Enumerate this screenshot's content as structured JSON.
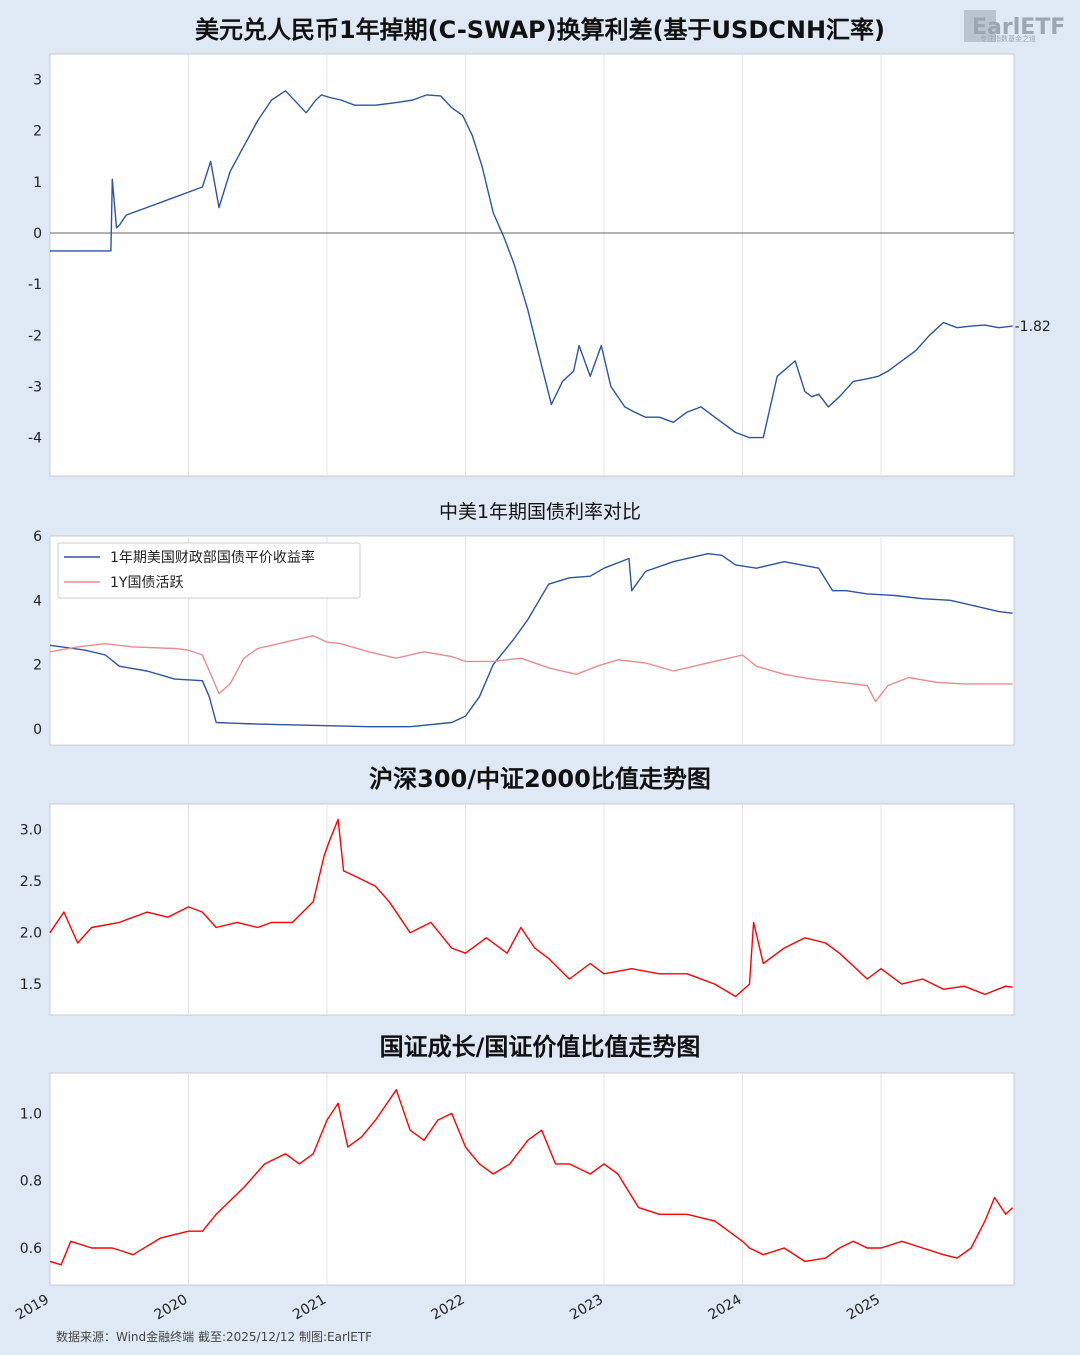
{
  "source_note": "数据来源：Wind金融终端 截至:2025/12/12 制图:EarlETF",
  "logo": {
    "text": "EarlETF",
    "subtitle": "专注指数基金之道"
  },
  "x_axis": {
    "tick_labels": [
      "2019",
      "2020",
      "2021",
      "2022",
      "2023",
      "2024",
      "2025"
    ]
  },
  "chart_data": [
    {
      "type": "line",
      "title": "美元兑人民币1年掉期(C-SWAP)换算利差(基于USDCNH汇率)",
      "ylim": [
        -4.75,
        3.5
      ],
      "yticks": [
        3,
        2,
        1,
        0,
        -1,
        -2,
        -3,
        -4
      ],
      "zero_line": true,
      "end_label": "-1.82",
      "series": [
        {
          "name": "",
          "color": "#2c54a0",
          "x": [
            2019.0,
            2019.44,
            2019.45,
            2019.48,
            2019.5,
            2019.55,
            2019.7,
            2019.85,
            2020.0,
            2020.1,
            2020.16,
            2020.22,
            2020.3,
            2020.38,
            2020.5,
            2020.6,
            2020.7,
            2020.85,
            2020.92,
            2020.96,
            2021.02,
            2021.1,
            2021.2,
            2021.35,
            2021.5,
            2021.62,
            2021.72,
            2021.82,
            2021.9,
            2021.98,
            2022.05,
            2022.12,
            2022.2,
            2022.28,
            2022.35,
            2022.45,
            2022.55,
            2022.62,
            2022.7,
            2022.78,
            2022.82,
            2022.9,
            2022.98,
            2023.05,
            2023.15,
            2023.22,
            2023.3,
            2023.4,
            2023.5,
            2023.6,
            2023.7,
            2023.85,
            2023.95,
            2024.05,
            2024.15,
            2024.25,
            2024.38,
            2024.45,
            2024.5,
            2024.55,
            2024.62,
            2024.7,
            2024.8,
            2024.9,
            2024.98,
            2025.05,
            2025.15,
            2025.25,
            2025.35,
            2025.45,
            2025.55,
            2025.65,
            2025.75,
            2025.85,
            2025.95
          ],
          "y": [
            -0.35,
            -0.35,
            1.05,
            0.1,
            0.15,
            0.35,
            0.5,
            0.65,
            0.8,
            0.9,
            1.4,
            0.5,
            1.2,
            1.6,
            2.2,
            2.6,
            2.78,
            2.35,
            2.6,
            2.7,
            2.65,
            2.6,
            2.5,
            2.5,
            2.55,
            2.6,
            2.7,
            2.68,
            2.45,
            2.3,
            1.9,
            1.3,
            0.4,
            -0.1,
            -0.6,
            -1.5,
            -2.6,
            -3.35,
            -2.9,
            -2.7,
            -2.2,
            -2.8,
            -2.2,
            -3.0,
            -3.4,
            -3.5,
            -3.6,
            -3.6,
            -3.7,
            -3.5,
            -3.4,
            -3.7,
            -3.9,
            -4.0,
            -4.0,
            -2.8,
            -2.5,
            -3.1,
            -3.2,
            -3.15,
            -3.4,
            -3.2,
            -2.9,
            -2.85,
            -2.8,
            -2.7,
            -2.5,
            -2.3,
            -2.0,
            -1.75,
            -1.85,
            -1.82,
            -1.8,
            -1.85,
            -1.82
          ]
        }
      ]
    },
    {
      "type": "line",
      "title": "中美1年期国债利率对比",
      "ylim": [
        -0.5,
        6.0
      ],
      "yticks": [
        6,
        4,
        2,
        0
      ],
      "legend_position": "top-left",
      "series": [
        {
          "name": "1年期美国财政部国债平价收益率",
          "color": "#2c54a0",
          "x": [
            2019.0,
            2019.25,
            2019.4,
            2019.5,
            2019.7,
            2019.9,
            2020.1,
            2020.15,
            2020.2,
            2020.3,
            2020.5,
            2020.8,
            2021.0,
            2021.3,
            2021.6,
            2021.9,
            2022.0,
            2022.1,
            2022.2,
            2022.35,
            2022.45,
            2022.6,
            2022.75,
            2022.9,
            2023.0,
            2023.18,
            2023.2,
            2023.3,
            2023.5,
            2023.75,
            2023.85,
            2023.95,
            2024.1,
            2024.3,
            2024.55,
            2024.65,
            2024.75,
            2024.9,
            2025.1,
            2025.3,
            2025.5,
            2025.7,
            2025.85,
            2025.95
          ],
          "y": [
            2.6,
            2.45,
            2.3,
            1.95,
            1.8,
            1.55,
            1.5,
            1.0,
            0.2,
            0.18,
            0.15,
            0.12,
            0.1,
            0.07,
            0.07,
            0.2,
            0.4,
            1.0,
            2.0,
            2.8,
            3.4,
            4.5,
            4.7,
            4.75,
            5.0,
            5.3,
            4.3,
            4.9,
            5.2,
            5.45,
            5.4,
            5.1,
            5.0,
            5.2,
            5.0,
            4.3,
            4.3,
            4.2,
            4.15,
            4.05,
            4.0,
            3.8,
            3.65,
            3.6
          ]
        },
        {
          "name": "1Y国债活跃",
          "color": "#e88c8c",
          "x": [
            2019.0,
            2019.2,
            2019.4,
            2019.6,
            2019.9,
            2020.0,
            2020.1,
            2020.22,
            2020.3,
            2020.4,
            2020.5,
            2020.7,
            2020.9,
            2021.0,
            2021.1,
            2021.3,
            2021.5,
            2021.7,
            2021.9,
            2022.0,
            2022.2,
            2022.4,
            2022.6,
            2022.8,
            2022.95,
            2023.1,
            2023.3,
            2023.5,
            2023.7,
            2023.9,
            2024.0,
            2024.1,
            2024.3,
            2024.5,
            2024.7,
            2024.9,
            2024.96,
            2025.05,
            2025.2,
            2025.4,
            2025.6,
            2025.8,
            2025.95
          ],
          "y": [
            2.4,
            2.55,
            2.65,
            2.55,
            2.5,
            2.45,
            2.3,
            1.1,
            1.4,
            2.2,
            2.5,
            2.7,
            2.9,
            2.7,
            2.65,
            2.4,
            2.2,
            2.4,
            2.25,
            2.1,
            2.1,
            2.2,
            1.9,
            1.7,
            1.95,
            2.15,
            2.05,
            1.8,
            2.0,
            2.2,
            2.3,
            1.95,
            1.7,
            1.55,
            1.45,
            1.35,
            0.85,
            1.35,
            1.6,
            1.45,
            1.4,
            1.4,
            1.4
          ]
        }
      ]
    },
    {
      "type": "line",
      "title": "沪深300/中证2000比值走势图",
      "ylim": [
        1.2,
        3.25
      ],
      "yticks": [
        3.0,
        2.5,
        2.0,
        1.5
      ],
      "series": [
        {
          "name": "",
          "color": "#ff0000",
          "x": [
            2019.0,
            2019.1,
            2019.2,
            2019.3,
            2019.5,
            2019.7,
            2019.85,
            2020.0,
            2020.1,
            2020.2,
            2020.35,
            2020.5,
            2020.6,
            2020.75,
            2020.9,
            2020.98,
            2021.02,
            2021.08,
            2021.12,
            2021.2,
            2021.35,
            2021.45,
            2021.6,
            2021.75,
            2021.9,
            2022.0,
            2022.15,
            2022.3,
            2022.4,
            2022.5,
            2022.6,
            2022.75,
            2022.9,
            2023.0,
            2023.2,
            2023.4,
            2023.6,
            2023.8,
            2023.95,
            2024.05,
            2024.08,
            2024.15,
            2024.3,
            2024.45,
            2024.6,
            2024.7,
            2024.78,
            2024.9,
            2025.0,
            2025.15,
            2025.3,
            2025.45,
            2025.6,
            2025.75,
            2025.9,
            2025.95
          ],
          "y": [
            2.0,
            2.2,
            1.9,
            2.05,
            2.1,
            2.2,
            2.15,
            2.25,
            2.2,
            2.05,
            2.1,
            2.05,
            2.1,
            2.1,
            2.3,
            2.75,
            2.9,
            3.1,
            2.6,
            2.55,
            2.45,
            2.3,
            2.0,
            2.1,
            1.85,
            1.8,
            1.95,
            1.8,
            2.05,
            1.85,
            1.75,
            1.55,
            1.7,
            1.6,
            1.65,
            1.6,
            1.6,
            1.5,
            1.38,
            1.5,
            2.1,
            1.7,
            1.85,
            1.95,
            1.9,
            1.8,
            1.7,
            1.55,
            1.65,
            1.5,
            1.55,
            1.45,
            1.48,
            1.4,
            1.48,
            1.47
          ]
        }
      ]
    },
    {
      "type": "line",
      "title": "国证成长/国证价值比值走势图",
      "ylim": [
        0.49,
        1.12
      ],
      "yticks": [
        1.0,
        0.8,
        0.6
      ],
      "series": [
        {
          "name": "",
          "color": "#ff0000",
          "x": [
            2019.0,
            2019.08,
            2019.15,
            2019.3,
            2019.45,
            2019.6,
            2019.8,
            2020.0,
            2020.1,
            2020.2,
            2020.4,
            2020.55,
            2020.7,
            2020.8,
            2020.9,
            2021.0,
            2021.08,
            2021.15,
            2021.25,
            2021.35,
            2021.5,
            2021.6,
            2021.7,
            2021.8,
            2021.9,
            2022.0,
            2022.1,
            2022.2,
            2022.32,
            2022.45,
            2022.55,
            2022.65,
            2022.75,
            2022.9,
            2023.0,
            2023.1,
            2023.25,
            2023.4,
            2023.6,
            2023.8,
            2024.0,
            2024.05,
            2024.15,
            2024.3,
            2024.45,
            2024.6,
            2024.7,
            2024.8,
            2024.9,
            2025.0,
            2025.15,
            2025.3,
            2025.45,
            2025.55,
            2025.65,
            2025.75,
            2025.82,
            2025.9,
            2025.95
          ],
          "y": [
            0.56,
            0.55,
            0.62,
            0.6,
            0.6,
            0.58,
            0.63,
            0.65,
            0.65,
            0.7,
            0.78,
            0.85,
            0.88,
            0.85,
            0.88,
            0.98,
            1.03,
            0.9,
            0.93,
            0.98,
            1.07,
            0.95,
            0.92,
            0.98,
            1.0,
            0.9,
            0.85,
            0.82,
            0.85,
            0.92,
            0.95,
            0.85,
            0.85,
            0.82,
            0.85,
            0.82,
            0.72,
            0.7,
            0.7,
            0.68,
            0.62,
            0.6,
            0.58,
            0.6,
            0.56,
            0.57,
            0.6,
            0.62,
            0.6,
            0.6,
            0.62,
            0.6,
            0.58,
            0.57,
            0.6,
            0.68,
            0.75,
            0.7,
            0.72
          ]
        }
      ]
    }
  ]
}
